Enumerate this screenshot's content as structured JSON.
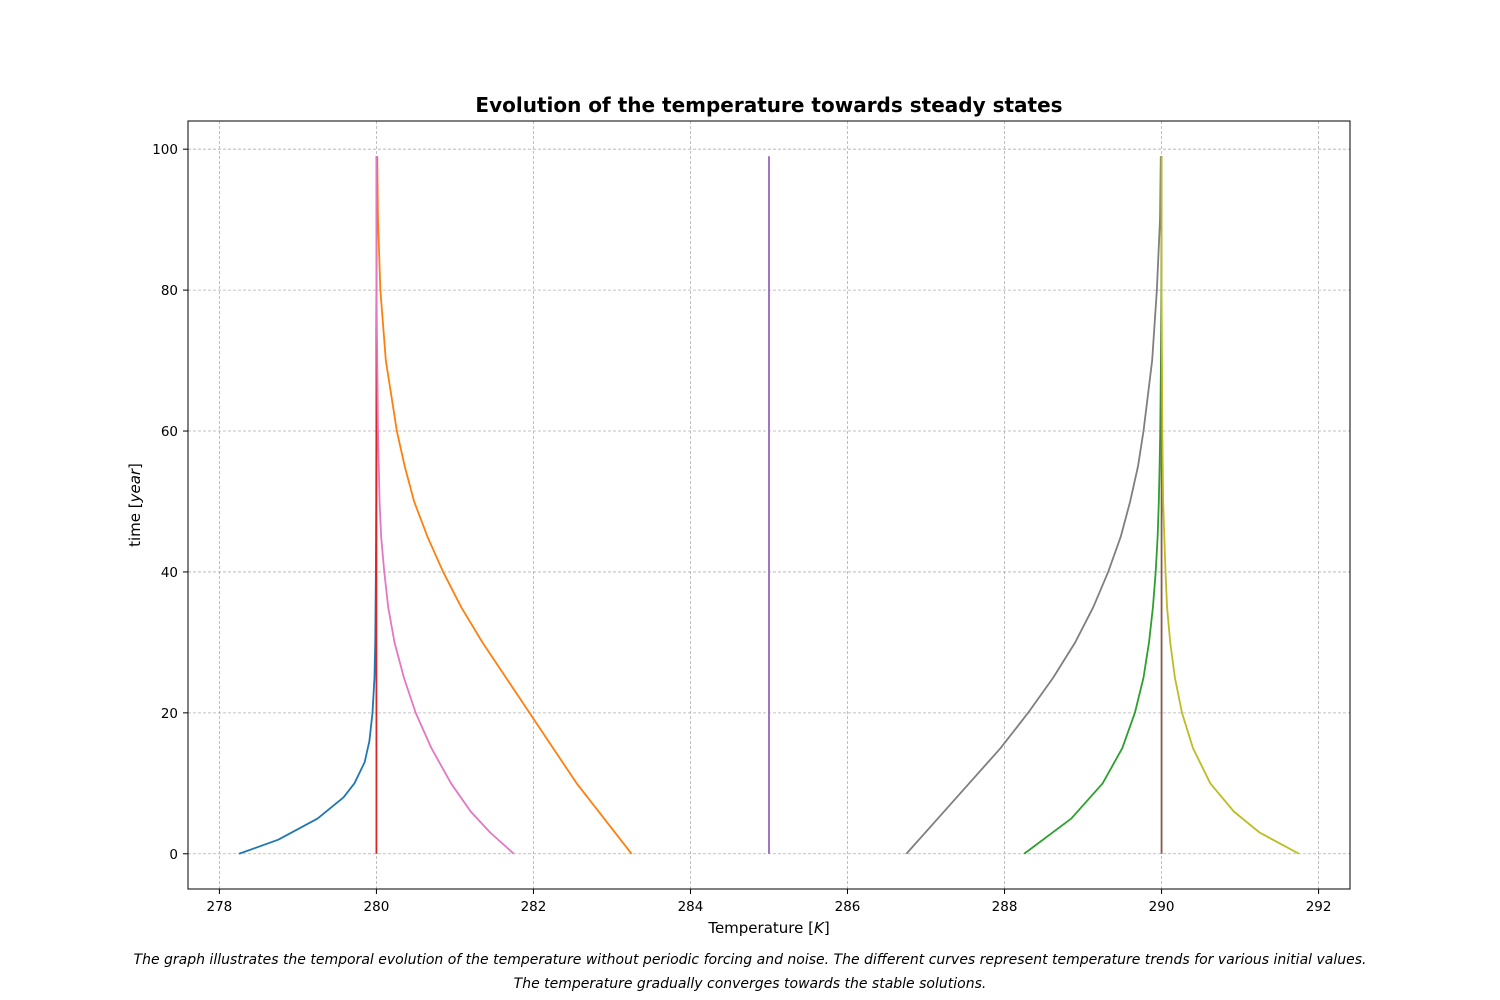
{
  "chart_data": {
    "type": "line",
    "title": "Evolution of the temperature towards steady states",
    "xlabel": {
      "prefix": "Temperature [",
      "var": "K",
      "suffix": "]"
    },
    "ylabel": {
      "prefix": "time [",
      "var": "year",
      "suffix": "]"
    },
    "xlim": [
      277.6,
      292.4
    ],
    "ylim": [
      -5,
      104
    ],
    "xticks": [
      278,
      280,
      282,
      284,
      286,
      288,
      290,
      292
    ],
    "yticks": [
      0,
      20,
      40,
      60,
      80,
      100
    ],
    "grid": true,
    "legend": "none",
    "series": [
      {
        "color": "#1f77b4",
        "t": [
          0,
          2,
          5,
          8,
          10,
          13,
          16,
          20,
          25,
          30,
          40,
          50,
          60,
          80,
          99
        ],
        "x": [
          278.25,
          278.75,
          279.25,
          279.58,
          279.72,
          279.85,
          279.91,
          279.95,
          279.975,
          279.985,
          279.993,
          279.997,
          279.999,
          280.0,
          280.0
        ]
      },
      {
        "color": "#ff7f0e",
        "t": [
          0,
          5,
          10,
          15,
          20,
          25,
          30,
          35,
          40,
          45,
          50,
          55,
          60,
          70,
          80,
          90,
          99
        ],
        "x": [
          283.25,
          282.9,
          282.55,
          282.25,
          281.95,
          281.65,
          281.35,
          281.08,
          280.85,
          280.65,
          280.48,
          280.36,
          280.26,
          280.12,
          280.05,
          280.02,
          280.01
        ]
      },
      {
        "color": "#2ca02c",
        "t": [
          0,
          5,
          10,
          15,
          20,
          25,
          30,
          35,
          40,
          45,
          50,
          55,
          60,
          70,
          80,
          99
        ],
        "x": [
          288.25,
          288.85,
          289.25,
          289.5,
          289.66,
          289.77,
          289.84,
          289.89,
          289.925,
          289.95,
          289.965,
          289.975,
          289.983,
          289.992,
          289.997,
          290.0
        ]
      },
      {
        "color": "#d62728",
        "t": [
          0,
          99
        ],
        "x": [
          280.0,
          280.0
        ]
      },
      {
        "color": "#9467bd",
        "t": [
          0,
          99
        ],
        "x": [
          285.0,
          285.0
        ]
      },
      {
        "color": "#8c564b",
        "t": [
          0,
          99
        ],
        "x": [
          290.0,
          290.0
        ]
      },
      {
        "color": "#e377c2",
        "t": [
          0,
          3,
          6,
          10,
          15,
          20,
          25,
          30,
          35,
          40,
          45,
          50,
          60,
          70,
          80,
          99
        ],
        "x": [
          281.75,
          281.45,
          281.2,
          280.95,
          280.7,
          280.5,
          280.35,
          280.23,
          280.15,
          280.1,
          280.06,
          280.04,
          280.02,
          280.01,
          280.0,
          280.0
        ]
      },
      {
        "color": "#7f7f7f",
        "t": [
          0,
          5,
          10,
          15,
          20,
          25,
          30,
          35,
          40,
          45,
          50,
          55,
          60,
          70,
          80,
          90,
          99
        ],
        "x": [
          286.75,
          287.15,
          287.55,
          287.95,
          288.3,
          288.62,
          288.9,
          289.13,
          289.32,
          289.48,
          289.6,
          289.7,
          289.77,
          289.88,
          289.94,
          289.98,
          289.99
        ]
      },
      {
        "color": "#bcbd22",
        "t": [
          0,
          3,
          6,
          10,
          15,
          20,
          25,
          30,
          35,
          40,
          50,
          60,
          70,
          80,
          99
        ],
        "x": [
          291.75,
          291.25,
          290.92,
          290.62,
          290.4,
          290.26,
          290.17,
          290.11,
          290.07,
          290.05,
          290.02,
          290.01,
          290.005,
          290.0,
          290.0
        ]
      }
    ]
  },
  "caption": {
    "line1": "The graph illustrates the temporal evolution of the temperature without periodic forcing and noise. The different curves represent temperature trends for various initial values.",
    "line2": "The temperature gradually converges towards the stable solutions."
  }
}
